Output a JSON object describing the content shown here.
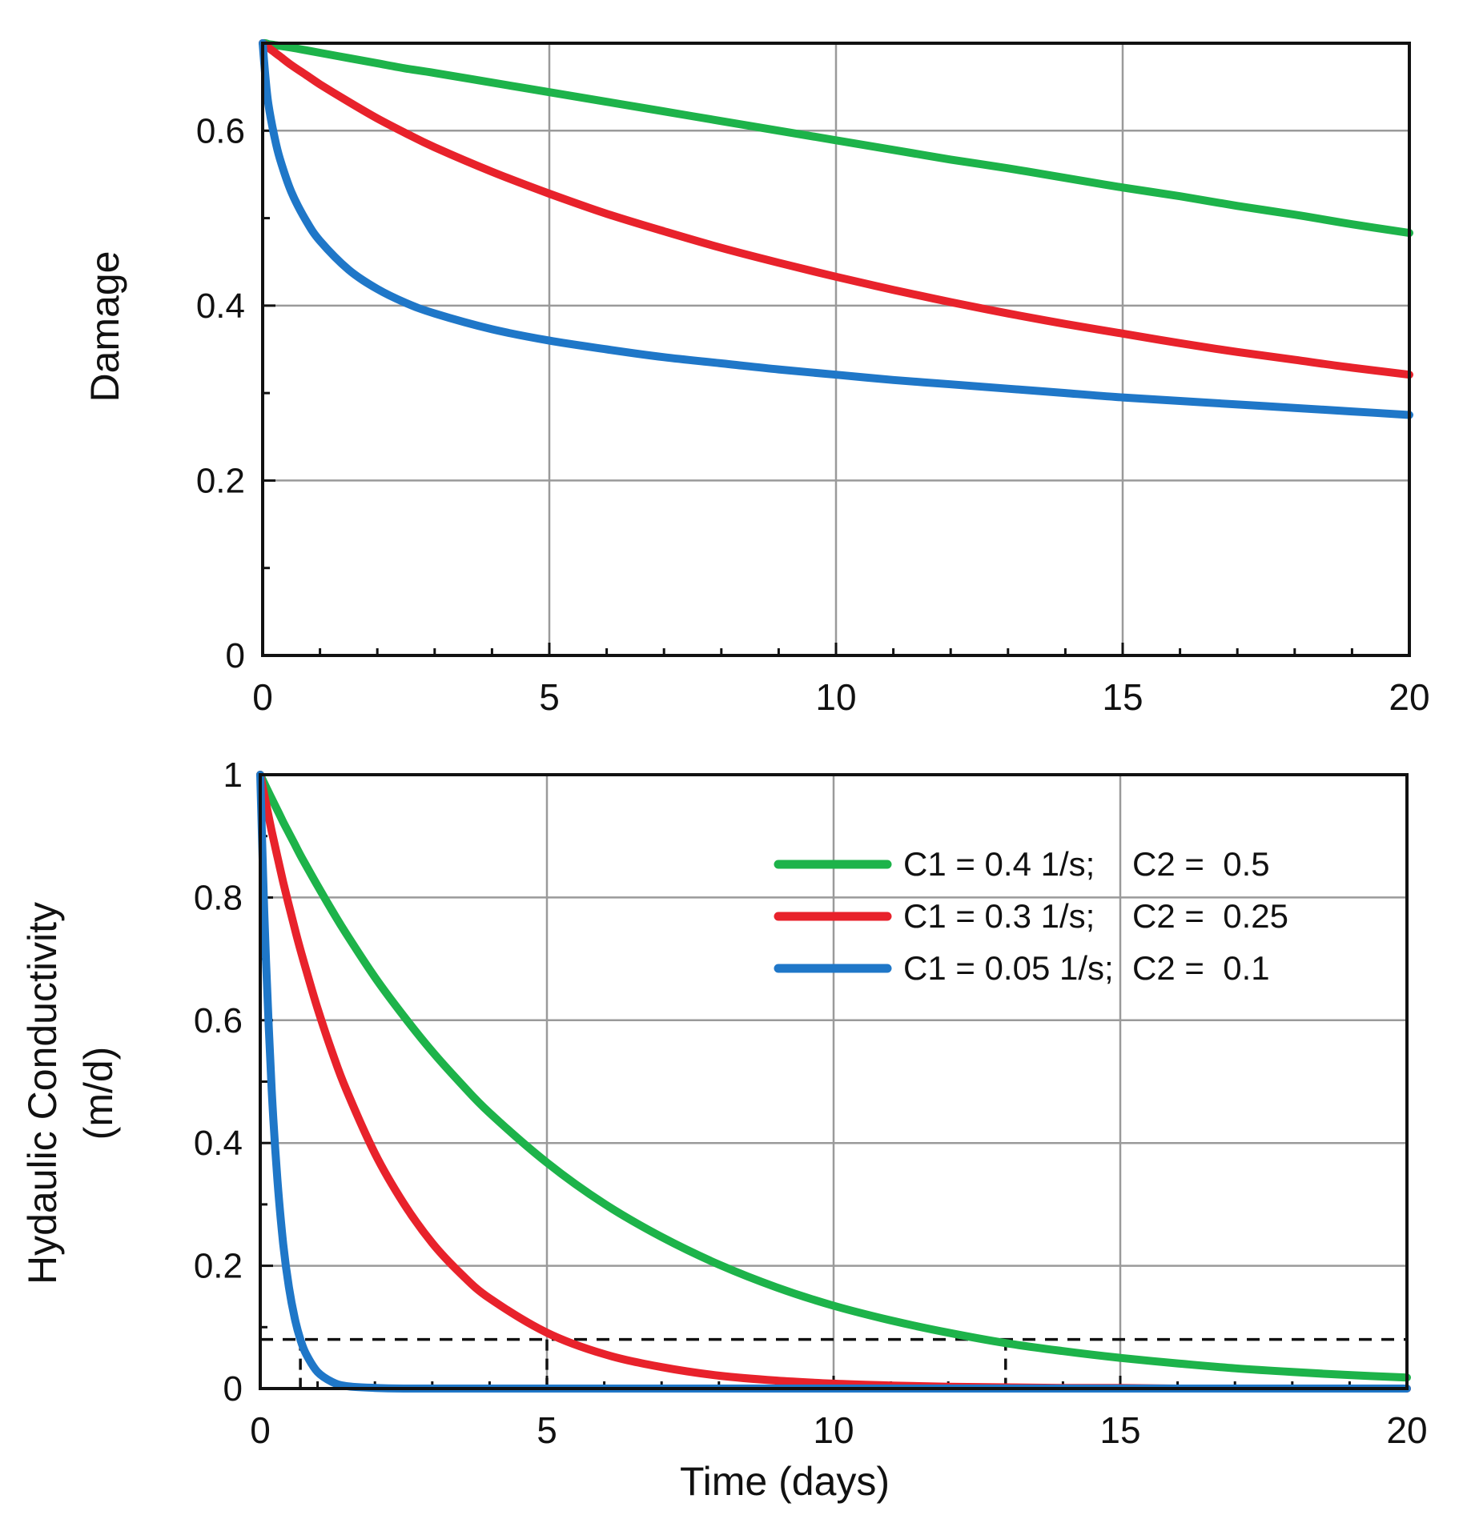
{
  "chart_data": [
    {
      "type": "line",
      "title": "",
      "xlabel": "",
      "ylabel": "Damage",
      "xlim": [
        0,
        20
      ],
      "ylim": [
        0,
        0.7
      ],
      "grid": true,
      "xticks": [
        0,
        5,
        10,
        15,
        20
      ],
      "xtick_labels": [
        "0",
        "5",
        "10",
        "15",
        "20"
      ],
      "yticks": [
        0,
        0.2,
        0.4,
        0.6
      ],
      "ytick_labels": [
        "0",
        "0.2",
        "0.4",
        "0.6"
      ],
      "x": [
        0,
        0.05,
        0.1,
        0.2,
        0.3,
        0.5,
        0.75,
        1,
        1.5,
        2,
        2.5,
        3,
        4,
        5,
        6,
        7,
        8,
        9,
        10,
        11,
        12,
        13,
        14,
        15,
        16,
        17,
        18,
        19,
        20
      ],
      "series": [
        {
          "name": "C1 = 0.4 1/s;    C2 =  0.5",
          "color": "#1db34a",
          "values": [
            0.7,
            0.7,
            0.699,
            0.698,
            0.697,
            0.695,
            0.692,
            0.689,
            0.683,
            0.677,
            0.671,
            0.666,
            0.655,
            0.644,
            0.633,
            0.622,
            0.611,
            0.6,
            0.589,
            0.578,
            0.567,
            0.557,
            0.546,
            0.535,
            0.525,
            0.514,
            0.504,
            0.493,
            0.483
          ]
        },
        {
          "name": "C1 = 0.3 1/s;    C2 =  0.25",
          "color": "#e8222b",
          "values": [
            0.7,
            0.698,
            0.695,
            0.69,
            0.685,
            0.675,
            0.664,
            0.653,
            0.633,
            0.614,
            0.597,
            0.581,
            0.553,
            0.528,
            0.505,
            0.485,
            0.466,
            0.449,
            0.433,
            0.418,
            0.404,
            0.391,
            0.379,
            0.368,
            0.357,
            0.347,
            0.338,
            0.329,
            0.321
          ]
        },
        {
          "name": "C1 = 0.05 1/s;  C2 =  0.1",
          "color": "#1f77c8",
          "values": [
            0.7,
            0.66,
            0.63,
            0.595,
            0.568,
            0.53,
            0.498,
            0.474,
            0.441,
            0.419,
            0.403,
            0.391,
            0.373,
            0.36,
            0.35,
            0.341,
            0.334,
            0.327,
            0.321,
            0.315,
            0.31,
            0.305,
            0.3,
            0.295,
            0.291,
            0.287,
            0.283,
            0.279,
            0.275
          ]
        }
      ]
    },
    {
      "type": "line",
      "title": "",
      "xlabel": "Time (days)",
      "ylabel": "Hydaulic Conductivity",
      "ylabel_line2": "(m/d)",
      "xlim": [
        0,
        20
      ],
      "ylim": [
        0,
        1
      ],
      "grid": true,
      "legend_position": "top-right",
      "xticks": [
        0,
        5,
        10,
        15,
        20
      ],
      "xtick_labels": [
        "0",
        "5",
        "10",
        "15",
        "20"
      ],
      "yticks": [
        0,
        0.2,
        0.4,
        0.6,
        0.8,
        1
      ],
      "ytick_labels": [
        "0",
        "0.2",
        "0.4",
        "0.6",
        "0.8",
        "1"
      ],
      "x": [
        0,
        0.05,
        0.1,
        0.2,
        0.3,
        0.4,
        0.5,
        0.6,
        0.7,
        0.8,
        1,
        1.25,
        1.5,
        2,
        2.5,
        3,
        3.5,
        4,
        5,
        6,
        7,
        8,
        9,
        10,
        11,
        12,
        13,
        14,
        15,
        16,
        17,
        18,
        19,
        20
      ],
      "series": [
        {
          "name": "C1 = 0.4 1/s;    C2 =  0.5",
          "color": "#1db34a",
          "values": [
            1.0,
            0.99,
            0.98,
            0.961,
            0.942,
            0.923,
            0.905,
            0.887,
            0.869,
            0.852,
            0.819,
            0.779,
            0.741,
            0.67,
            0.607,
            0.549,
            0.497,
            0.449,
            0.368,
            0.301,
            0.247,
            0.202,
            0.165,
            0.135,
            0.111,
            0.091,
            0.074,
            0.061,
            0.05,
            0.041,
            0.033,
            0.027,
            0.022,
            0.018
          ]
        },
        {
          "name": "C1 = 0.3 1/s;    C2 =  0.25",
          "color": "#e8222b",
          "values": [
            1.0,
            0.976,
            0.953,
            0.908,
            0.866,
            0.825,
            0.787,
            0.75,
            0.715,
            0.682,
            0.619,
            0.549,
            0.487,
            0.383,
            0.302,
            0.237,
            0.187,
            0.147,
            0.091,
            0.056,
            0.035,
            0.021,
            0.013,
            0.008,
            0.005,
            0.003,
            0.002,
            0.001,
            0.001,
            0.0,
            0.0,
            0.0,
            0.0,
            0.0
          ]
        },
        {
          "name": "C1 = 0.05 1/s;  C2 =  0.1",
          "color": "#1f77c8",
          "values": [
            1.0,
            0.835,
            0.697,
            0.486,
            0.339,
            0.236,
            0.165,
            0.115,
            0.08,
            0.056,
            0.027,
            0.011,
            0.004,
            0.001,
            0.0,
            0.0,
            0.0,
            0.0,
            0.0,
            0.0,
            0.0,
            0.0,
            0.0,
            0.0,
            0.0,
            0.0,
            0.0,
            0.0,
            0.0,
            0.0,
            0.0,
            0.0,
            0.0,
            0.0
          ]
        }
      ],
      "threshold": {
        "y": 0.08,
        "style": "dashed",
        "color": "#111111",
        "x_markers": [
          0.7,
          5,
          13
        ]
      }
    }
  ],
  "legend": {
    "entries": [
      {
        "label": "C1 = 0.4 1/s;    C2 =  0.5",
        "color": "#1db34a"
      },
      {
        "label": "C1 = 0.3 1/s;    C2 =  0.25",
        "color": "#e8222b"
      },
      {
        "label": "C1 = 0.05 1/s;  C2 =  0.1",
        "color": "#1f77c8"
      }
    ]
  },
  "colors": {
    "axis": "#111111",
    "grid": "#9a9a9a",
    "background": "#ffffff"
  }
}
